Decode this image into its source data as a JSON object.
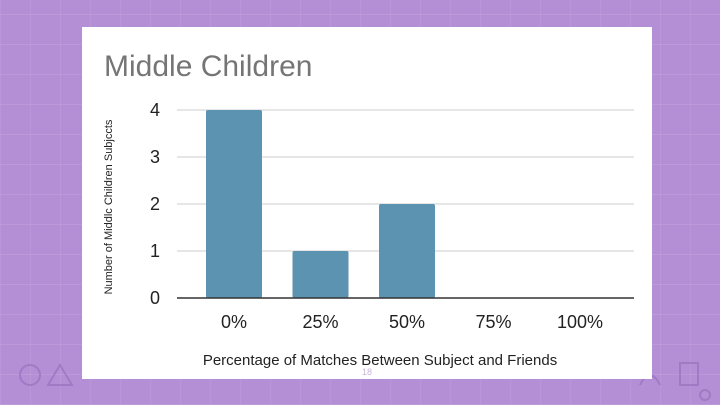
{
  "slide": {
    "page_number": "18",
    "background_color": "#b48fd6"
  },
  "chart_data": {
    "type": "bar",
    "title": "Middle Children",
    "categories": [
      "0%",
      "25%",
      "50%",
      "75%",
      "100%"
    ],
    "values": [
      4,
      1,
      2,
      0,
      0
    ],
    "xlabel": "Percentage of Matches Between Subject and Friends",
    "ylabel": "Number of Middlc Children Subjccts",
    "ylim": [
      0,
      4
    ],
    "yticks": [
      "0",
      "1",
      "2",
      "3",
      "4"
    ],
    "grid": true,
    "bar_color": "#5b93b0"
  }
}
